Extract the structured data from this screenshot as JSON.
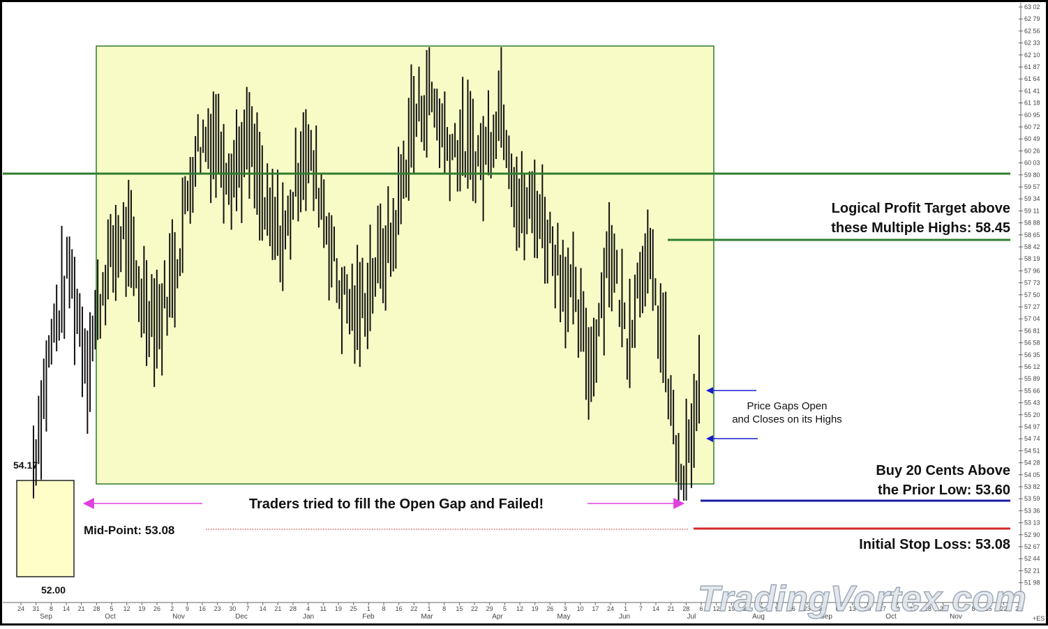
{
  "chart_data": {
    "type": "bar",
    "subtype": "ohlc-price-bars",
    "title": "",
    "xlabel": "",
    "ylabel": "",
    "ylim": [
      51.98,
      63.02
    ],
    "grid": false,
    "legend": "none",
    "y_ticks": [
      "63 02",
      "62 79",
      "62 56",
      "62 33",
      "62 10",
      "61 87",
      "61 64",
      "61 41",
      "61 18",
      "60 95",
      "60 72",
      "60 49",
      "60 26",
      "60 03",
      "59 80",
      "59 57",
      "59 34",
      "59 11",
      "58 88",
      "58 65",
      "58 42",
      "58 19",
      "57 96",
      "57 73",
      "57 50",
      "57 27",
      "57 04",
      "56 81",
      "56 58",
      "56 35",
      "56 12",
      "55 89",
      "55 66",
      "55 43",
      "55 20",
      "54 97",
      "54 74",
      "54 51",
      "54 28",
      "54 05",
      "53 82",
      "53 59",
      "53 36",
      "53 13",
      "52 90",
      "52 67",
      "52 44",
      "52 21",
      "51 98"
    ],
    "x_day_ticks": [
      "24",
      "31",
      "8",
      "14",
      "21",
      "28",
      "5",
      "12",
      "19",
      "26",
      "2",
      "9",
      "16",
      "23",
      "30",
      "7",
      "14",
      "21",
      "28",
      "4",
      "11",
      "19",
      "25",
      "1",
      "8",
      "16",
      "22",
      "1",
      "8",
      "15",
      "22",
      "29",
      "5",
      "12",
      "19",
      "26",
      "3",
      "10",
      "17",
      "24",
      "1",
      "7",
      "14",
      "21",
      "28",
      "6",
      "12",
      "19",
      "26",
      "2",
      "9",
      "16",
      "23",
      "30",
      "6",
      "13",
      "20",
      "27",
      "4",
      "11",
      "18",
      "25",
      "1",
      "8",
      "15",
      "22",
      "29"
    ],
    "x_month_labels": [
      "Sep",
      "Oct",
      "Nov",
      "Dec",
      "Jan",
      "Feb",
      "Mar",
      "Apr",
      "May",
      "Jun",
      "Jul",
      "Aug",
      "Sep",
      "Oct",
      "Nov"
    ],
    "axis_corner_label": "+ES",
    "gap_levels": {
      "gap_low": 52.0,
      "gap_high": 54.17,
      "midpoint": 53.08,
      "buy_entry": 53.6,
      "stop_loss": 53.08,
      "profit_target": 58.45,
      "resistance_line": 59.9,
      "range_high": 62.28,
      "range_low": 54.0
    },
    "annotations": {
      "gap_high_label": "54.17",
      "gap_low_label": "52.00",
      "profit_line1": "Logical Profit Target above",
      "profit_line2": "these Multiple Highs: 58.45",
      "buy_line1": "Buy 20 Cents Above",
      "buy_line2": "the Prior Low: 53.60",
      "stop_label": "Initial Stop Loss: 53.08",
      "midpoint_label": "Mid-Point: 53.08",
      "fill_attempt": "Traders tried to fill the Open Gap and Failed!",
      "gap_note_line1": "Price Gaps Open",
      "gap_note_line2": "and Closes on its Highs"
    },
    "watermark": "TradingVortex.com",
    "colors": {
      "range_fill": "#f8fbc6",
      "range_border": "#2d7a2d",
      "gap_fill": "#fffec9",
      "resistance_line": "#2e7d2e",
      "target_line": "#2e7d2e",
      "buy_line": "#1a1aa8",
      "stop_line": "#d42a2a",
      "midpoint_dots": "#d94444",
      "fill_arrow": "#e040e0",
      "gap_arrow": "#1a1ad0",
      "price_bars": "#111111"
    },
    "price_path": [
      {
        "month": "Sep",
        "close": 54.3
      },
      {
        "month": "Sep",
        "close": 56.6
      },
      {
        "month": "Sep",
        "close": 58.0
      },
      {
        "month": "Oct",
        "close": 56.2
      },
      {
        "month": "Oct",
        "close": 57.9
      },
      {
        "month": "Oct",
        "close": 58.7
      },
      {
        "month": "Oct",
        "close": 57.5
      },
      {
        "month": "Nov",
        "close": 57.0
      },
      {
        "month": "Nov",
        "close": 58.2
      },
      {
        "month": "Nov",
        "close": 60.3
      },
      {
        "month": "Nov",
        "close": 60.6
      },
      {
        "month": "Dec",
        "close": 59.9
      },
      {
        "month": "Dec",
        "close": 60.4
      },
      {
        "month": "Dec",
        "close": 58.9
      },
      {
        "month": "Dec",
        "close": 58.6
      },
      {
        "month": "Jan",
        "close": 60.4
      },
      {
        "month": "Jan",
        "close": 59.4
      },
      {
        "month": "Jan",
        "close": 57.6
      },
      {
        "month": "Jan",
        "close": 57.1
      },
      {
        "month": "Feb",
        "close": 58.0
      },
      {
        "month": "Feb",
        "close": 58.6
      },
      {
        "month": "Feb",
        "close": 60.7
      },
      {
        "month": "Mar",
        "close": 61.4
      },
      {
        "month": "Mar",
        "close": 60.4
      },
      {
        "month": "Mar",
        "close": 60.3
      },
      {
        "month": "Mar",
        "close": 60.1
      },
      {
        "month": "Apr",
        "close": 61.3
      },
      {
        "month": "Apr",
        "close": 59.1
      },
      {
        "month": "Apr",
        "close": 59.2
      },
      {
        "month": "May",
        "close": 58.3
      },
      {
        "month": "May",
        "close": 57.4
      },
      {
        "month": "May",
        "close": 56.1
      },
      {
        "month": "Jun",
        "close": 58.5
      },
      {
        "month": "Jun",
        "close": 56.7
      },
      {
        "month": "Jun",
        "close": 58.4
      },
      {
        "month": "Jun",
        "close": 56.6
      },
      {
        "month": "Jul",
        "close": 53.6
      },
      {
        "month": "Jul",
        "close": 55.6
      }
    ]
  }
}
